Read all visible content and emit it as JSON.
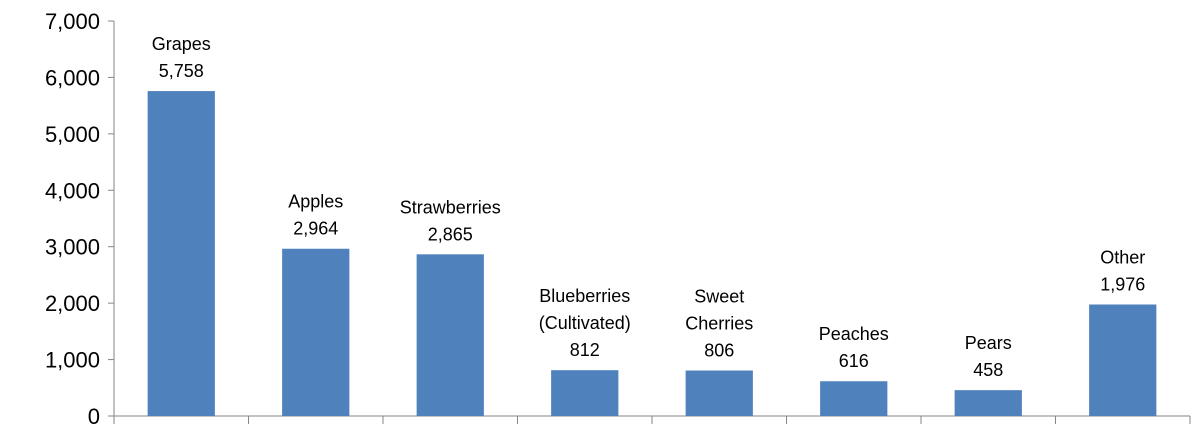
{
  "chart_data": {
    "type": "bar",
    "categories": [
      "Grapes",
      "Apples",
      "Strawberries",
      "Blueberries (Cultivated)",
      "Sweet Cherries",
      "Peaches",
      "Pears",
      "Other"
    ],
    "category_label_lines": [
      [
        "Grapes"
      ],
      [
        "Apples"
      ],
      [
        "Strawberries"
      ],
      [
        "Blueberries",
        "(Cultivated)"
      ],
      [
        "Sweet",
        "Cherries"
      ],
      [
        "Peaches"
      ],
      [
        "Pears"
      ],
      [
        "Other"
      ]
    ],
    "values": [
      5758,
      2964,
      2865,
      812,
      806,
      616,
      458,
      1976
    ],
    "value_labels": [
      "5,758",
      "2,964",
      "2,865",
      "812",
      "806",
      "616",
      "458",
      "1,976"
    ],
    "y_ticks": [
      0,
      1000,
      2000,
      3000,
      4000,
      5000,
      6000,
      7000
    ],
    "y_tick_labels": [
      "0",
      "1,000",
      "2,000",
      "3,000",
      "4,000",
      "5,000",
      "6,000",
      "7,000"
    ],
    "ylim": [
      0,
      7000
    ],
    "title": "",
    "xlabel": "",
    "ylabel": "",
    "grid": false,
    "legend": "none",
    "bar_color": "#4F81BD"
  }
}
